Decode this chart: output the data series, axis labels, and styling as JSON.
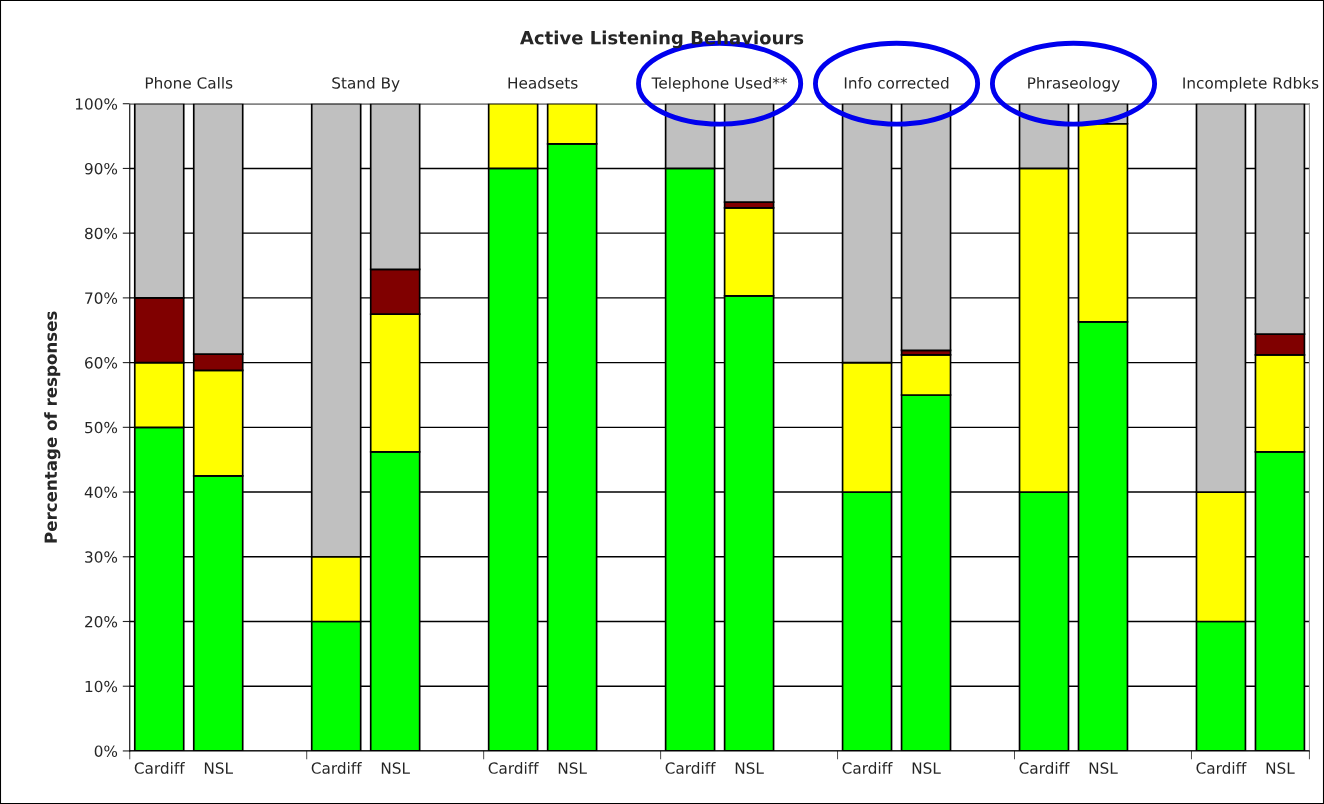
{
  "chart_data": {
    "type": "bar",
    "stacked": true,
    "title": "Active Listening Behaviours",
    "ylabel": "Percentage of responses",
    "categories": [
      "Cardiff",
      "NSL",
      null,
      "Cardiff",
      "NSL",
      null,
      "Cardiff",
      "NSL",
      null,
      "Cardiff",
      "NSL",
      null,
      "Cardiff",
      "NSL",
      null,
      "Cardiff",
      "NSL",
      null,
      "Cardiff",
      "NSL"
    ],
    "annotations": [
      "Phone Calls",
      "Stand By",
      "Headsets",
      "Telephone Used**",
      "Info corrected",
      "Phraseology",
      "Incomplete Rdbks"
    ],
    "series": [
      {
        "color": "#00ff00",
        "values": [
          50,
          42.5,
          null,
          20,
          46.2,
          null,
          90,
          93.8,
          null,
          90,
          70.3,
          null,
          40,
          55,
          null,
          40,
          66.3,
          null,
          20,
          46.2
        ]
      },
      {
        "color": "#ffff00",
        "values": [
          10,
          16.3,
          null,
          10,
          21.3,
          null,
          10,
          6.2,
          null,
          0,
          13.6,
          null,
          20,
          6.2,
          null,
          50,
          30.6,
          null,
          20,
          15.0
        ]
      },
      {
        "color": "#800000",
        "values": [
          10,
          2.5,
          null,
          0,
          6.9,
          null,
          0,
          0,
          null,
          0,
          0.9,
          null,
          0,
          0.7,
          null,
          0,
          0,
          null,
          0,
          3.2
        ]
      },
      {
        "color": "#c0c0c0",
        "values": [
          30,
          38.7,
          null,
          70,
          25.6,
          null,
          0,
          0,
          null,
          10,
          15.2,
          null,
          40,
          38.1,
          null,
          10,
          3.1,
          null,
          60,
          35.6
        ]
      }
    ],
    "ylim": [
      0,
      100
    ],
    "yticks": [
      {
        "value": 0,
        "label": "0%"
      },
      {
        "value": 10,
        "label": "10%"
      },
      {
        "value": 20,
        "label": "20%"
      },
      {
        "value": 30,
        "label": "30%"
      },
      {
        "value": 40,
        "label": "40%"
      },
      {
        "value": 50,
        "label": "50%"
      },
      {
        "value": 60,
        "label": "60%"
      },
      {
        "value": 70,
        "label": "70%"
      },
      {
        "value": 80,
        "label": "80%"
      },
      {
        "value": 90,
        "label": "90%"
      },
      {
        "value": 100,
        "label": "100%"
      }
    ],
    "grid": "y",
    "legend": false
  }
}
